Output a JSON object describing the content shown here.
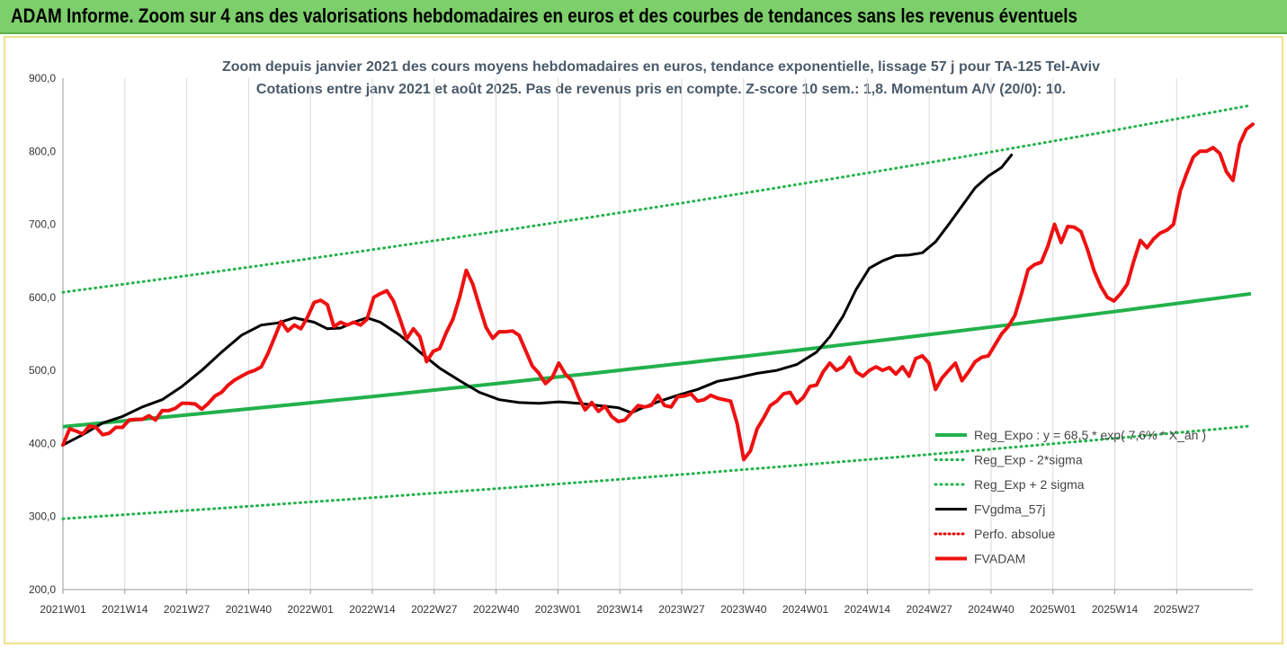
{
  "header": {
    "title": "ADAM Informe. Zoom sur 4 ans des valorisations hebdomadaires en euros et des courbes de tendances sans les revenus éventuels"
  },
  "colors": {
    "header_bg": "#7ccf6a",
    "frame_border": "#f0e08a",
    "reg_expo": "#22b14c",
    "sigma_bands": "#22b14c",
    "fvgdma": "#000000",
    "perfo": "#e00000",
    "fvadam": "#ee1111"
  },
  "chart_data": {
    "type": "line",
    "title_line1": "Zoom depuis janvier 2021 des cours moyens hebdomadaires en euros, tendance exponentielle, lissage 57 j pour TA-125 Tel-Aviv",
    "title_line2": "Cotations entre janv 2021 et août 2025. Pas de revenus pris en compte. Z-score 10 sem.: 1,8. Momentum A/V (20/0): 10.",
    "ylim": [
      200,
      900
    ],
    "yticks": [
      "200,0",
      "300,0",
      "400,0",
      "500,0",
      "600,0",
      "700,0",
      "800,0",
      "900,0"
    ],
    "ytick_values": [
      200,
      300,
      400,
      500,
      600,
      700,
      800,
      900
    ],
    "xticks": [
      "2021W01",
      "2021W14",
      "2021W27",
      "2021W40",
      "2022W01",
      "2022W14",
      "2022W27",
      "2022W40",
      "2023W01",
      "2023W14",
      "2023W27",
      "2023W40",
      "2024W01",
      "2024W14",
      "2024W27",
      "2024W40",
      "2025W01",
      "2025W14",
      "2025W27"
    ],
    "xtick_index": [
      0,
      13,
      26,
      39,
      52,
      65,
      78,
      91,
      104,
      117,
      130,
      143,
      156,
      169,
      182,
      195,
      208,
      221,
      234
    ],
    "n_weeks": 251,
    "legend_position": "bottom-right",
    "grid": "vertical",
    "series": [
      {
        "name": "Reg_Expo : y = 68,5 * exp( 7,6% * X_an )",
        "style": "solid-thick",
        "start": 423,
        "end": 605
      },
      {
        "name": "Reg_Exp - 2*sigma",
        "style": "dotted",
        "start": 297,
        "end": 424
      },
      {
        "name": "Reg_Exp + 2 sigma",
        "style": "dotted",
        "start": 607,
        "end": 863
      },
      {
        "name": "FVgdma_57j",
        "style": "solid",
        "points": [
          [
            0,
            398
          ],
          [
            6,
            412
          ],
          [
            12,
            428
          ],
          [
            18,
            437
          ],
          [
            24,
            450
          ],
          [
            30,
            460
          ],
          [
            36,
            478
          ],
          [
            42,
            500
          ],
          [
            48,
            525
          ],
          [
            54,
            548
          ],
          [
            60,
            562
          ],
          [
            65,
            565
          ],
          [
            70,
            572
          ],
          [
            76,
            566
          ],
          [
            80,
            557
          ],
          [
            84,
            558
          ],
          [
            88,
            566
          ],
          [
            92,
            572
          ],
          [
            96,
            566
          ],
          [
            102,
            548
          ],
          [
            108,
            525
          ],
          [
            114,
            503
          ],
          [
            120,
            486
          ],
          [
            126,
            470
          ],
          [
            132,
            460
          ],
          [
            138,
            456
          ],
          [
            144,
            455
          ],
          [
            150,
            457
          ],
          [
            156,
            455
          ],
          [
            162,
            452
          ],
          [
            168,
            449
          ],
          [
            172,
            442
          ],
          [
            176,
            450
          ],
          [
            180,
            457
          ],
          [
            186,
            466
          ],
          [
            192,
            474
          ],
          [
            198,
            485
          ],
          [
            204,
            490
          ],
          [
            210,
            496
          ],
          [
            216,
            500
          ],
          [
            222,
            508
          ],
          [
            228,
            525
          ],
          [
            232,
            546
          ],
          [
            236,
            574
          ],
          [
            240,
            611
          ],
          [
            244,
            640
          ],
          [
            248,
            650
          ],
          [
            252,
            657
          ],
          [
            256,
            658
          ],
          [
            260,
            661
          ],
          [
            264,
            676
          ],
          [
            268,
            700
          ],
          [
            272,
            725
          ],
          [
            276,
            750
          ],
          [
            280,
            766
          ],
          [
            284,
            778
          ],
          [
            287,
            795
          ]
        ]
      },
      {
        "name": "Perfo. absolue",
        "style": "dotted",
        "points": []
      },
      {
        "name": "FVADAM",
        "style": "solid-thick",
        "points": [
          [
            0,
            398
          ],
          [
            2,
            420
          ],
          [
            4,
            417
          ],
          [
            6,
            413
          ],
          [
            8,
            424
          ],
          [
            10,
            422
          ],
          [
            12,
            412
          ],
          [
            14,
            414
          ],
          [
            16,
            422
          ],
          [
            18,
            422
          ],
          [
            20,
            432
          ],
          [
            22,
            433
          ],
          [
            24,
            433
          ],
          [
            26,
            438
          ],
          [
            28,
            432
          ],
          [
            30,
            445
          ],
          [
            32,
            445
          ],
          [
            34,
            448
          ],
          [
            36,
            455
          ],
          [
            38,
            455
          ],
          [
            40,
            454
          ],
          [
            42,
            447
          ],
          [
            44,
            455
          ],
          [
            46,
            465
          ],
          [
            48,
            470
          ],
          [
            50,
            480
          ],
          [
            52,
            487
          ],
          [
            54,
            492
          ],
          [
            56,
            497
          ],
          [
            58,
            500
          ],
          [
            60,
            505
          ],
          [
            62,
            523
          ],
          [
            64,
            545
          ],
          [
            66,
            567
          ],
          [
            68,
            554
          ],
          [
            70,
            562
          ],
          [
            72,
            557
          ],
          [
            74,
            573
          ],
          [
            76,
            593
          ],
          [
            78,
            596
          ],
          [
            80,
            590
          ],
          [
            82,
            560
          ],
          [
            84,
            566
          ],
          [
            86,
            562
          ],
          [
            88,
            566
          ],
          [
            90,
            562
          ],
          [
            92,
            570
          ],
          [
            94,
            600
          ],
          [
            96,
            605
          ],
          [
            98,
            609
          ],
          [
            100,
            595
          ],
          [
            102,
            570
          ],
          [
            104,
            543
          ],
          [
            106,
            557
          ],
          [
            108,
            546
          ],
          [
            110,
            512
          ],
          [
            112,
            526
          ],
          [
            114,
            530
          ],
          [
            116,
            552
          ],
          [
            118,
            570
          ],
          [
            120,
            600
          ],
          [
            122,
            637
          ],
          [
            124,
            618
          ],
          [
            126,
            588
          ],
          [
            128,
            559
          ],
          [
            130,
            544
          ],
          [
            132,
            553
          ],
          [
            134,
            553
          ],
          [
            136,
            554
          ],
          [
            138,
            548
          ],
          [
            140,
            527
          ],
          [
            142,
            506
          ],
          [
            144,
            496
          ],
          [
            146,
            482
          ],
          [
            148,
            490
          ],
          [
            150,
            510
          ],
          [
            152,
            495
          ],
          [
            154,
            486
          ],
          [
            156,
            463
          ],
          [
            158,
            446
          ],
          [
            160,
            456
          ],
          [
            162,
            444
          ],
          [
            164,
            451
          ],
          [
            166,
            437
          ],
          [
            168,
            430
          ],
          [
            170,
            432
          ],
          [
            172,
            442
          ],
          [
            174,
            452
          ],
          [
            176,
            450
          ],
          [
            178,
            452
          ],
          [
            180,
            466
          ],
          [
            182,
            452
          ],
          [
            184,
            450
          ],
          [
            186,
            464
          ],
          [
            188,
            465
          ],
          [
            190,
            468
          ],
          [
            192,
            458
          ],
          [
            194,
            460
          ],
          [
            196,
            466
          ],
          [
            198,
            462
          ],
          [
            200,
            460
          ],
          [
            202,
            458
          ],
          [
            204,
            427
          ],
          [
            206,
            378
          ],
          [
            208,
            390
          ],
          [
            210,
            420
          ],
          [
            212,
            435
          ],
          [
            214,
            452
          ],
          [
            216,
            458
          ],
          [
            218,
            468
          ],
          [
            220,
            470
          ],
          [
            222,
            455
          ],
          [
            224,
            463
          ],
          [
            226,
            478
          ],
          [
            228,
            480
          ],
          [
            230,
            498
          ],
          [
            232,
            510
          ],
          [
            234,
            500
          ],
          [
            236,
            505
          ],
          [
            238,
            518
          ],
          [
            240,
            498
          ],
          [
            242,
            492
          ],
          [
            244,
            500
          ],
          [
            246,
            505
          ],
          [
            248,
            500
          ],
          [
            250,
            504
          ],
          [
            252,
            495
          ],
          [
            254,
            505
          ],
          [
            256,
            492
          ],
          [
            258,
            516
          ],
          [
            260,
            520
          ],
          [
            262,
            510
          ],
          [
            264,
            474
          ],
          [
            266,
            490
          ],
          [
            268,
            500
          ],
          [
            270,
            510
          ],
          [
            272,
            486
          ],
          [
            274,
            498
          ],
          [
            276,
            512
          ],
          [
            278,
            518
          ],
          [
            280,
            520
          ],
          [
            282,
            535
          ],
          [
            284,
            550
          ],
          [
            286,
            560
          ],
          [
            288,
            575
          ],
          [
            290,
            605
          ],
          [
            292,
            638
          ],
          [
            294,
            645
          ],
          [
            296,
            648
          ],
          [
            298,
            670
          ],
          [
            300,
            700
          ],
          [
            302,
            675
          ],
          [
            304,
            697
          ],
          [
            306,
            696
          ],
          [
            308,
            690
          ],
          [
            310,
            665
          ],
          [
            312,
            636
          ],
          [
            314,
            615
          ],
          [
            316,
            600
          ],
          [
            318,
            595
          ],
          [
            320,
            605
          ],
          [
            322,
            618
          ],
          [
            324,
            650
          ],
          [
            326,
            678
          ],
          [
            328,
            668
          ],
          [
            330,
            680
          ],
          [
            332,
            688
          ],
          [
            334,
            692
          ],
          [
            336,
            700
          ],
          [
            338,
            745
          ],
          [
            340,
            770
          ],
          [
            342,
            792
          ],
          [
            344,
            800
          ],
          [
            346,
            800
          ],
          [
            348,
            805
          ],
          [
            350,
            797
          ],
          [
            352,
            772
          ],
          [
            354,
            760
          ],
          [
            356,
            810
          ],
          [
            358,
            830
          ],
          [
            360,
            837
          ]
        ]
      }
    ]
  },
  "legend": {
    "items": [
      {
        "label": "Reg_Expo : y = 68,5 * exp( 7,6% * X_an )",
        "style": "solid-green-thick"
      },
      {
        "label": "Reg_Exp - 2*sigma",
        "style": "dotted-green"
      },
      {
        "label": "Reg_Exp + 2 sigma",
        "style": "dotted-green"
      },
      {
        "label": "FVgdma_57j",
        "style": "solid-black"
      },
      {
        "label": "Perfo. absolue",
        "style": "dotted-red"
      },
      {
        "label": "FVADAM",
        "style": "solid-red-thick"
      }
    ]
  }
}
